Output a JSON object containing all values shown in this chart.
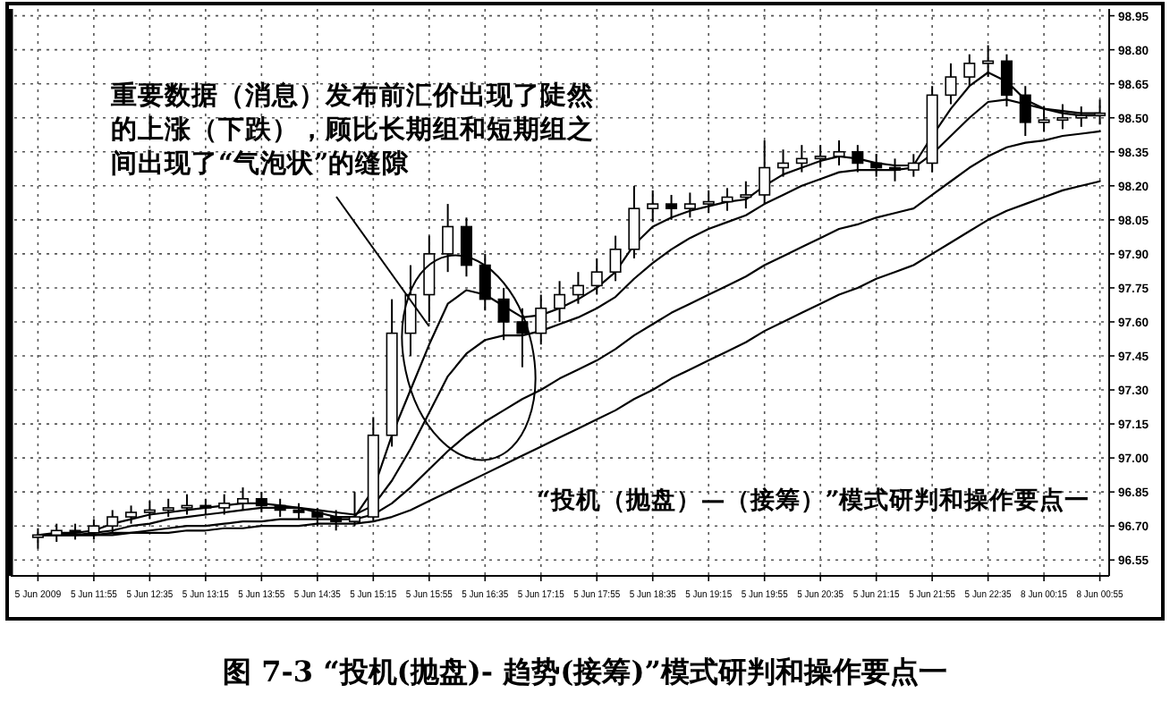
{
  "chart_data": {
    "type": "candlestick",
    "categories": [
      "5 Jun 2009",
      null,
      null,
      "5 Jun 11:55",
      null,
      null,
      "5 Jun 12:35",
      null,
      null,
      "5 Jun 13:15",
      null,
      null,
      "5 Jun 13:55",
      null,
      null,
      "5 Jun 14:35",
      null,
      null,
      "5 Jun 15:15",
      null,
      null,
      "5 Jun 15:55",
      null,
      null,
      "5 Jun 16:35",
      null,
      null,
      "5 Jun 17:15",
      null,
      null,
      "5 Jun 17:55",
      null,
      null,
      "5 Jun 18:35",
      null,
      null,
      "5 Jun 19:15",
      null,
      null,
      "5 Jun 19:55",
      null,
      null,
      "5 Jun 20:35",
      null,
      null,
      "5 Jun 21:15",
      null,
      null,
      "5 Jun 21:55",
      null,
      null,
      "5 Jun 22:35",
      null,
      null,
      "8 Jun 00:15",
      null,
      null,
      "8 Jun 00:55"
    ],
    "ohlc": [
      [
        96.65,
        96.69,
        96.6,
        96.66
      ],
      [
        96.66,
        96.71,
        96.63,
        96.68
      ],
      [
        96.68,
        96.71,
        96.64,
        96.67
      ],
      [
        96.67,
        96.73,
        96.64,
        96.7
      ],
      [
        96.7,
        96.77,
        96.67,
        96.74
      ],
      [
        96.74,
        96.79,
        96.71,
        96.76
      ],
      [
        96.76,
        96.81,
        96.73,
        96.77
      ],
      [
        96.77,
        96.82,
        96.74,
        96.78
      ],
      [
        96.78,
        96.84,
        96.75,
        96.79
      ],
      [
        96.79,
        96.82,
        96.75,
        96.78
      ],
      [
        96.78,
        96.84,
        96.75,
        96.8
      ],
      [
        96.8,
        96.87,
        96.77,
        96.82
      ],
      [
        96.82,
        96.85,
        96.76,
        96.79
      ],
      [
        96.79,
        96.82,
        96.74,
        96.77
      ],
      [
        96.77,
        96.8,
        96.73,
        96.76
      ],
      [
        96.76,
        96.78,
        96.7,
        96.74
      ],
      [
        96.74,
        96.77,
        96.68,
        96.72
      ],
      [
        96.72,
        96.85,
        96.7,
        96.74
      ],
      [
        96.74,
        97.18,
        96.72,
        97.1
      ],
      [
        97.1,
        97.7,
        97.05,
        97.55
      ],
      [
        97.55,
        97.85,
        97.45,
        97.72
      ],
      [
        97.72,
        97.98,
        97.6,
        97.9
      ],
      [
        97.9,
        98.12,
        97.82,
        98.02
      ],
      [
        98.02,
        98.06,
        97.8,
        97.85
      ],
      [
        97.85,
        97.9,
        97.65,
        97.7
      ],
      [
        97.7,
        97.75,
        97.52,
        97.6
      ],
      [
        97.6,
        97.66,
        97.4,
        97.55
      ],
      [
        97.55,
        97.72,
        97.5,
        97.66
      ],
      [
        97.66,
        97.78,
        97.6,
        97.72
      ],
      [
        97.72,
        97.82,
        97.68,
        97.76
      ],
      [
        97.76,
        97.88,
        97.72,
        97.82
      ],
      [
        97.82,
        97.98,
        97.78,
        97.92
      ],
      [
        97.92,
        98.2,
        97.88,
        98.1
      ],
      [
        98.1,
        98.18,
        98.04,
        98.12
      ],
      [
        98.12,
        98.16,
        98.05,
        98.1
      ],
      [
        98.1,
        98.17,
        98.06,
        98.12
      ],
      [
        98.12,
        98.18,
        98.08,
        98.13
      ],
      [
        98.13,
        98.19,
        98.09,
        98.15
      ],
      [
        98.15,
        98.22,
        98.1,
        98.16
      ],
      [
        98.16,
        98.4,
        98.12,
        98.28
      ],
      [
        98.28,
        98.36,
        98.24,
        98.3
      ],
      [
        98.3,
        98.38,
        98.26,
        98.32
      ],
      [
        98.32,
        98.38,
        98.28,
        98.33
      ],
      [
        98.33,
        98.4,
        98.29,
        98.35
      ],
      [
        98.35,
        98.38,
        98.26,
        98.3
      ],
      [
        98.3,
        98.34,
        98.24,
        98.28
      ],
      [
        98.28,
        98.32,
        98.22,
        98.27
      ],
      [
        98.27,
        98.34,
        98.24,
        98.3
      ],
      [
        98.3,
        98.64,
        98.26,
        98.6
      ],
      [
        98.6,
        98.74,
        98.56,
        98.68
      ],
      [
        98.68,
        98.78,
        98.64,
        98.74
      ],
      [
        98.74,
        98.82,
        98.68,
        98.75
      ],
      [
        98.75,
        98.78,
        98.55,
        98.6
      ],
      [
        98.6,
        98.64,
        98.42,
        98.48
      ],
      [
        98.48,
        98.55,
        98.44,
        98.49
      ],
      [
        98.49,
        98.56,
        98.45,
        98.5
      ],
      [
        98.5,
        98.55,
        98.46,
        98.51
      ],
      [
        98.51,
        98.58,
        98.47,
        98.52
      ]
    ],
    "series": [
      {
        "type": "line",
        "color": "#000000",
        "values": [
          96.66,
          96.67,
          96.67,
          96.68,
          96.71,
          96.73,
          96.75,
          96.76,
          96.77,
          96.78,
          96.79,
          96.8,
          96.8,
          96.79,
          96.78,
          96.76,
          96.74,
          96.74,
          96.86,
          97.1,
          97.3,
          97.5,
          97.68,
          97.74,
          97.72,
          97.67,
          97.62,
          97.63,
          97.66,
          97.7,
          97.75,
          97.82,
          97.94,
          98.02,
          98.06,
          98.09,
          98.11,
          98.13,
          98.14,
          98.2,
          98.25,
          98.28,
          98.31,
          98.33,
          98.32,
          98.3,
          98.29,
          98.29,
          98.42,
          98.54,
          98.64,
          98.7,
          98.66,
          98.58,
          98.54,
          98.52,
          98.51,
          98.51
        ]
      },
      {
        "type": "line",
        "color": "#000000",
        "values": [
          96.66,
          96.66,
          96.66,
          96.67,
          96.68,
          96.7,
          96.71,
          96.73,
          96.74,
          96.75,
          96.76,
          96.77,
          96.78,
          96.78,
          96.78,
          96.77,
          96.76,
          96.75,
          96.79,
          96.9,
          97.04,
          97.2,
          97.36,
          97.46,
          97.52,
          97.54,
          97.54,
          97.56,
          97.59,
          97.62,
          97.66,
          97.71,
          97.79,
          97.86,
          97.92,
          97.97,
          98.01,
          98.04,
          98.07,
          98.12,
          98.16,
          98.2,
          98.23,
          98.26,
          98.27,
          98.27,
          98.27,
          98.28,
          98.34,
          98.42,
          98.5,
          98.57,
          98.58,
          98.56,
          98.54,
          98.53,
          98.52,
          98.52
        ]
      },
      {
        "type": "line",
        "color": "#000000",
        "values": [
          96.66,
          96.66,
          96.66,
          96.66,
          96.67,
          96.67,
          96.68,
          96.69,
          96.7,
          96.7,
          96.71,
          96.72,
          96.72,
          96.73,
          96.73,
          96.73,
          96.73,
          96.73,
          96.75,
          96.8,
          96.87,
          96.95,
          97.03,
          97.1,
          97.16,
          97.21,
          97.26,
          97.3,
          97.35,
          97.39,
          97.43,
          97.48,
          97.54,
          97.59,
          97.64,
          97.68,
          97.72,
          97.76,
          97.8,
          97.85,
          97.89,
          97.93,
          97.97,
          98.01,
          98.03,
          98.06,
          98.08,
          98.1,
          98.16,
          98.22,
          98.28,
          98.33,
          98.37,
          98.39,
          98.4,
          98.42,
          98.43,
          98.44
        ]
      },
      {
        "type": "line",
        "color": "#000000",
        "values": [
          96.66,
          96.66,
          96.66,
          96.66,
          96.66,
          96.67,
          96.67,
          96.67,
          96.68,
          96.68,
          96.69,
          96.69,
          96.7,
          96.7,
          96.7,
          96.71,
          96.71,
          96.71,
          96.72,
          96.74,
          96.77,
          96.81,
          96.85,
          96.89,
          96.93,
          96.97,
          97.01,
          97.05,
          97.09,
          97.13,
          97.17,
          97.21,
          97.26,
          97.3,
          97.35,
          97.39,
          97.43,
          97.47,
          97.51,
          97.56,
          97.6,
          97.64,
          97.68,
          97.72,
          97.75,
          97.79,
          97.82,
          97.85,
          97.9,
          97.95,
          98.0,
          98.05,
          98.09,
          98.12,
          98.15,
          98.18,
          98.2,
          98.22
        ]
      }
    ],
    "ylim": [
      96.48,
      98.98
    ],
    "yticks": [
      {
        "value": 96.55,
        "label": "96.55"
      },
      {
        "value": 96.7,
        "label": "96.70"
      },
      {
        "value": 96.85,
        "label": "96.85"
      },
      {
        "value": 97.0,
        "label": "97.00"
      },
      {
        "value": 97.15,
        "label": "97.15"
      },
      {
        "value": 97.3,
        "label": "97.30"
      },
      {
        "value": 97.45,
        "label": "97.45"
      },
      {
        "value": 97.6,
        "label": "97.60"
      },
      {
        "value": 97.75,
        "label": "97.75"
      },
      {
        "value": 97.9,
        "label": "97.90"
      },
      {
        "value": 98.05,
        "label": "98.05"
      },
      {
        "value": 98.2,
        "label": "98.20"
      },
      {
        "value": 98.35,
        "label": "98.35"
      },
      {
        "value": 98.5,
        "label": "98.50"
      },
      {
        "value": 98.65,
        "label": "98.65"
      },
      {
        "value": 98.8,
        "label": "98.80"
      },
      {
        "value": 98.95,
        "label": "98.95"
      }
    ],
    "grid": true,
    "annotations": [
      {
        "text": "重要数据（消息）发布前汇价出现了陡然的上涨（下跌），顾比长期组和短期组之间出现了“气泡状”的缝隙",
        "x": "5 Jun 15:55",
        "y": 97.58
      },
      "“投机（抛盘）—（接筹）”模式研判和操作要点一",
      "图 7-3 “投机(抛盘)- 趋势(接筹)”模式研判和操作要点一"
    ]
  }
}
